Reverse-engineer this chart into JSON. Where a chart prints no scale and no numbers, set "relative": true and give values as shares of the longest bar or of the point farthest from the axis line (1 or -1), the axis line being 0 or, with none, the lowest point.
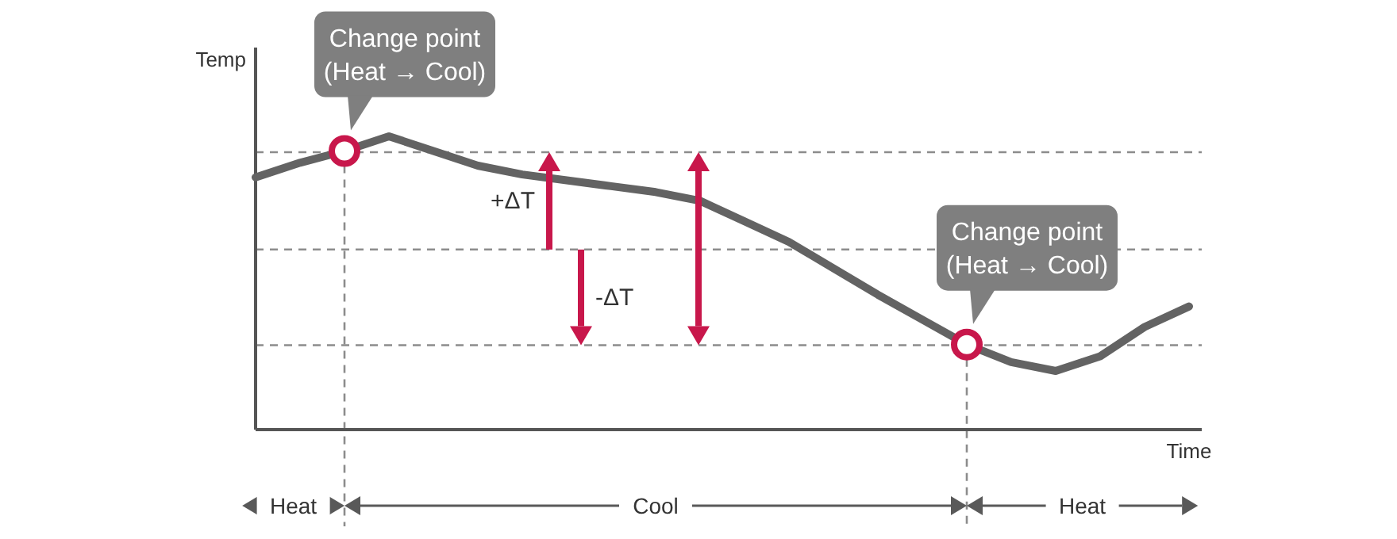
{
  "chart_data": {
    "type": "line",
    "relative": true,
    "xlabel": "Time",
    "ylabel": "Temp",
    "categories": [
      null,
      null,
      null,
      null,
      null,
      null,
      null,
      null,
      null,
      null,
      null,
      null,
      null,
      null,
      null,
      null,
      null,
      null,
      null,
      null,
      null,
      null
    ],
    "series": [
      {
        "color": "#636363",
        "line_style": "solid",
        "values": [
          0.86,
          0.91,
          0.95,
          1.0,
          0.95,
          0.9,
          0.87,
          0.85,
          0.83,
          0.81,
          0.78,
          0.71,
          0.64,
          0.55,
          0.46,
          0.375,
          0.29,
          0.23,
          0.2,
          0.25,
          0.35,
          0.42
        ]
      }
    ],
    "ref_lines": [
      {
        "axis": "y",
        "value": 0.946,
        "color": "#8c8c8c",
        "line_style": "dashed"
      },
      {
        "axis": "y",
        "value": 0.614,
        "color": "#8c8c8c",
        "line_style": "dashed"
      },
      {
        "axis": "y",
        "value": 0.288,
        "color": "#8c8c8c",
        "line_style": "dashed"
      }
    ],
    "annotations": [
      "Change point\n(Heat → Cool)",
      "Change point\n(Heat → Cool)",
      "+ΔT",
      "-ΔT",
      "Heat",
      "Cool",
      "Heat"
    ],
    "marker": "none"
  }
}
